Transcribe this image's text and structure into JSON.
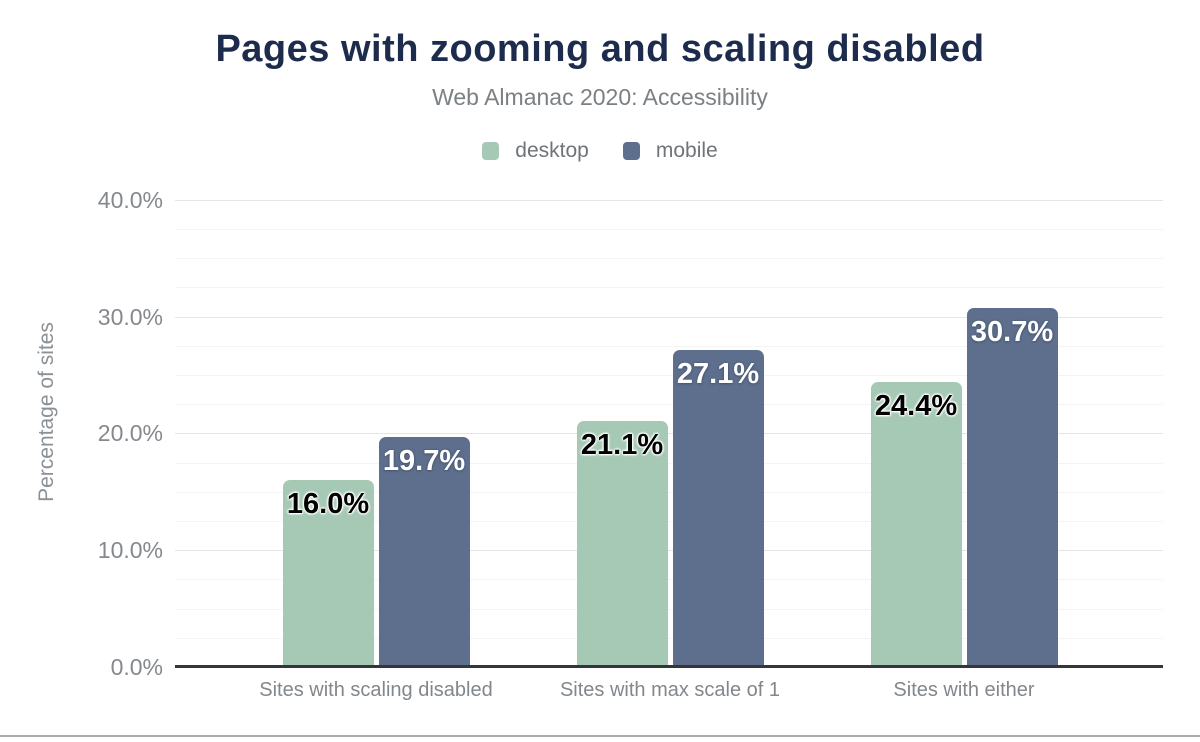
{
  "page": {
    "background": "#ffffff",
    "bottom_divider_color": "#a9abad"
  },
  "chart_data": {
    "type": "bar",
    "title": "Pages with zooming and scaling disabled",
    "subtitle": "Web Almanac 2020: Accessibility",
    "ylabel": "Percentage of sites",
    "xlabel": "",
    "categories": [
      "Sites with scaling disabled",
      "Sites with max scale of 1",
      "Sites with either"
    ],
    "series": [
      {
        "name": "desktop",
        "color": "#a6c9b5",
        "data_label_color": "#000000",
        "values": [
          16.0,
          21.1,
          24.4
        ],
        "data_labels": [
          "16.0%",
          "21.1%",
          "24.4%"
        ]
      },
      {
        "name": "mobile",
        "color": "#5d6f8d",
        "data_label_color": "#ffffff",
        "values": [
          19.7,
          27.1,
          30.7
        ],
        "data_labels": [
          "19.7%",
          "27.1%",
          "30.7%"
        ]
      }
    ],
    "ylim": [
      0,
      40
    ],
    "y_major_step": 10,
    "y_minor_step": 2.5,
    "y_tick_labels": [
      "0.0%",
      "10.0%",
      "20.0%",
      "30.0%",
      "40.0%"
    ],
    "grid": true,
    "legend_position": "top",
    "colors": {
      "title": "#1d2b4d",
      "subtitle": "#7b8085",
      "axis_text": "#85898e",
      "legend_text": "#6f747a",
      "major_grid": "#e4e5e6",
      "minor_grid": "#f4f4f5",
      "axis_line": "#32373c"
    }
  }
}
